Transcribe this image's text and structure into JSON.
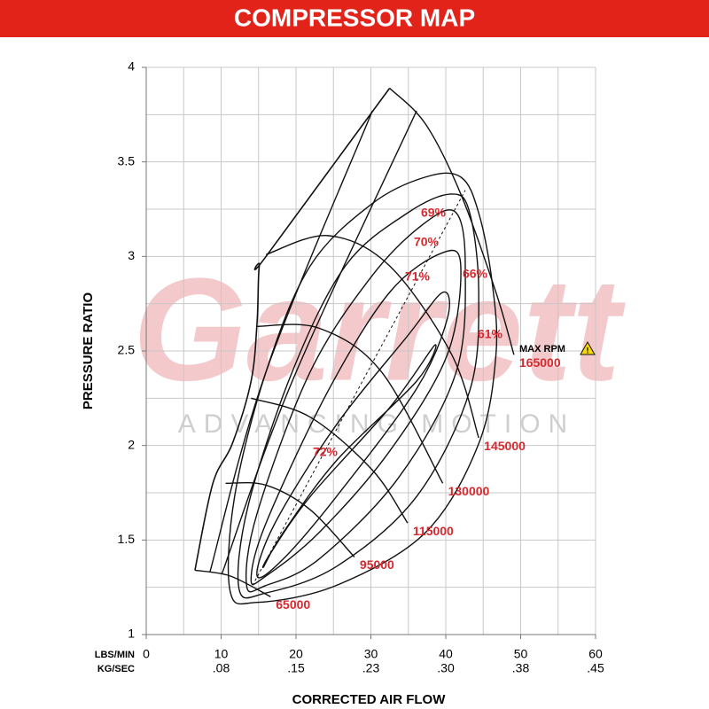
{
  "chart_data": {
    "type": "line",
    "title": "COMPRESSOR MAP",
    "xlabel": "CORRECTED AIR FLOW",
    "ylabel": "PRESSURE RATIO",
    "x_units_label": "LBS/MIN",
    "x2_units_label": "KG/SEC",
    "watermark": [
      "Garrett",
      "ADVANCING MOTION"
    ],
    "max_rpm_label": "MAX RPM",
    "xlim": [
      0,
      60
    ],
    "ylim": [
      1,
      4
    ],
    "xticks": [
      0,
      10,
      20,
      30,
      40,
      50,
      60
    ],
    "x2ticks": [
      ".08",
      ".15",
      ".23",
      ".30",
      ".38",
      ".45"
    ],
    "yticks": [
      1,
      1.5,
      2,
      2.5,
      3,
      3.5,
      4
    ],
    "xgrid": [
      0,
      5,
      10,
      15,
      20,
      25,
      30,
      35,
      40,
      45,
      50,
      55,
      60
    ],
    "ygrid": [
      1,
      1.25,
      1.5,
      1.75,
      2,
      2.25,
      2.5,
      2.75,
      3,
      3.25,
      3.5,
      3.75,
      4
    ],
    "grid": true,
    "line_color": "#111111",
    "label_color": "#d42a2f",
    "surge_line": {
      "x": [
        6.5,
        8.9,
        11.5,
        14.0,
        14.8,
        15.1,
        16.0,
        32.5
      ],
      "values": [
        1.34,
        1.8,
        2.01,
        2.34,
        2.65,
        2.95,
        3.0,
        3.89
      ]
    },
    "peak_efficiency_line": {
      "x": [
        14.2,
        42.6
      ],
      "values": [
        1.26,
        3.35
      ]
    },
    "outer_lines": [
      {
        "x": [
          8.5,
          16.0,
          30.2
        ],
        "values": [
          1.33,
          2.39,
          3.77
        ]
      },
      {
        "x": [
          10.1,
          19.5,
          36.1
        ],
        "values": [
          1.32,
          2.34,
          3.77
        ]
      }
    ],
    "speed_lines": [
      {
        "name": "65000",
        "x": [
          6.5,
          11.2,
          16.6
        ],
        "values": [
          1.34,
          1.31,
          1.2
        ]
      },
      {
        "name": "95000",
        "x": [
          10.6,
          16.0,
          21.9,
          27.8
        ],
        "values": [
          1.8,
          1.79,
          1.66,
          1.41
        ]
      },
      {
        "name": "115000",
        "x": [
          14.0,
          21.9,
          30.2,
          34.9
        ],
        "values": [
          2.25,
          2.15,
          1.87,
          1.59
        ]
      },
      {
        "name": "130000",
        "x": [
          14.8,
          23.1,
          31.4,
          39.6
        ],
        "values": [
          2.63,
          2.62,
          2.39,
          1.8
        ]
      },
      {
        "name": "145000",
        "x": [
          16.0,
          24.3,
          32.5,
          40.8,
          44.4
        ],
        "values": [
          3.01,
          3.11,
          2.95,
          2.48,
          2.04
        ]
      },
      {
        "name": "165000",
        "x": [
          32.5,
          37.3,
          42.0,
          46.7,
          49.1
        ],
        "values": [
          3.89,
          3.7,
          3.33,
          2.81,
          2.48
        ]
      }
    ],
    "efficiency_islands": [
      {
        "name": "72%",
        "x": [
          15.7,
          18.3,
          25.4,
          36.1,
          38.5,
          32.5,
          21.9,
          16.6
        ],
        "values": [
          1.36,
          1.54,
          1.92,
          2.34,
          2.53,
          2.2,
          1.73,
          1.43
        ]
      },
      {
        "name": "71%",
        "x": [
          14.8,
          17.2,
          25.4,
          34.9,
          39.6,
          40.2,
          36.1,
          25.4,
          18.3
        ],
        "values": [
          1.31,
          1.59,
          2.11,
          2.58,
          2.81,
          2.67,
          2.3,
          1.73,
          1.4
        ]
      },
      {
        "name": "70%",
        "x": [
          14.0,
          16.0,
          24.3,
          32.5,
          39.6,
          42.0,
          40.2,
          32.5,
          23.1,
          16.0
        ],
        "values": [
          1.29,
          1.59,
          2.29,
          2.81,
          3.02,
          2.95,
          2.48,
          1.97,
          1.54,
          1.31
        ]
      },
      {
        "name": "69%",
        "x": [
          13.4,
          14.8,
          21.9,
          30.2,
          37.3,
          41.4,
          42.6,
          41.4,
          33.7,
          23.1,
          16.0
        ],
        "values": [
          1.26,
          1.64,
          2.39,
          2.9,
          3.18,
          3.23,
          2.95,
          2.39,
          1.83,
          1.4,
          1.26
        ]
      },
      {
        "name": "66%",
        "x": [
          12.4,
          13.6,
          19.5,
          26.6,
          34.9,
          40.8,
          43.2,
          44.4,
          43.2,
          36.1,
          25.4,
          16.0
        ],
        "values": [
          1.24,
          1.68,
          2.39,
          2.95,
          3.23,
          3.33,
          3.23,
          2.81,
          2.29,
          1.73,
          1.36,
          1.22
        ]
      },
      {
        "name": "61%",
        "x": [
          11.2,
          11.8,
          16.0,
          21.9,
          30.2,
          37.3,
          42.0,
          44.4,
          46.2,
          46.7,
          44.4,
          37.3,
          25.4,
          14.8
        ],
        "values": [
          1.23,
          1.73,
          2.39,
          2.95,
          3.28,
          3.42,
          3.42,
          3.23,
          2.86,
          2.48,
          2.01,
          1.54,
          1.26,
          1.17
        ]
      }
    ]
  }
}
